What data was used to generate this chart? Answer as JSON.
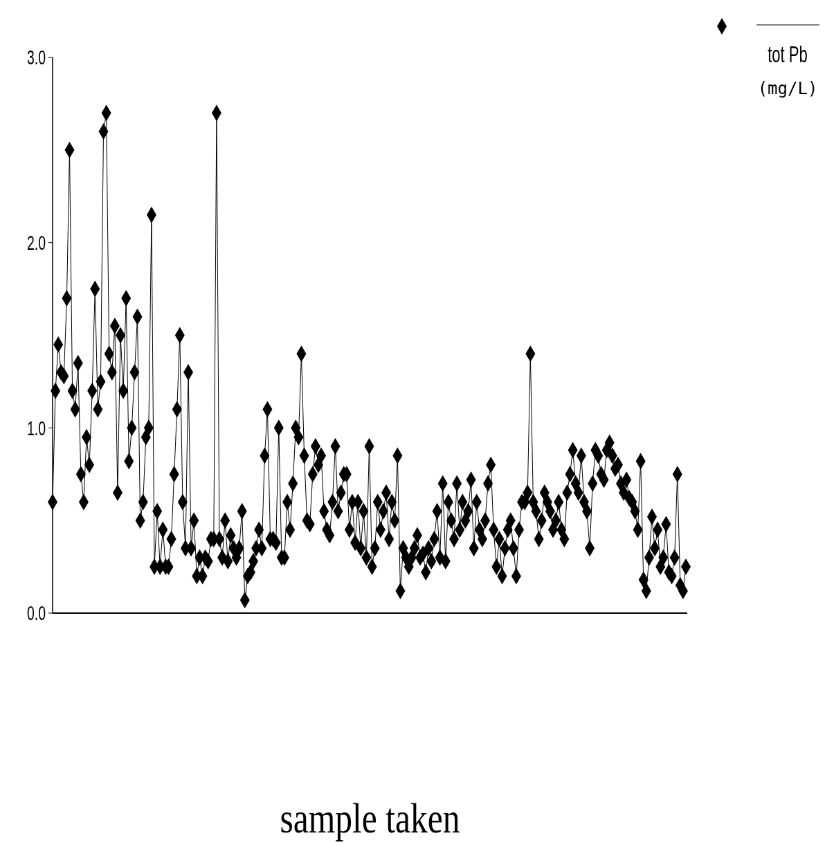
{
  "chart_data": {
    "type": "line",
    "xlabel": "sample taken",
    "categories": [
      null,
      null,
      null,
      null,
      null,
      null,
      null,
      null,
      null,
      null,
      null,
      null,
      null,
      null,
      null,
      null,
      null,
      null,
      null,
      null,
      null,
      null,
      null,
      null,
      null,
      null,
      null,
      null,
      null,
      null,
      null,
      null,
      null,
      null,
      null,
      null,
      null,
      null,
      null,
      null,
      null,
      null,
      null,
      null,
      null,
      null,
      null,
      null,
      null,
      null,
      null,
      null,
      null,
      null,
      null,
      null,
      null,
      null,
      null,
      null,
      null,
      null,
      null,
      null,
      null,
      null,
      null,
      null,
      null,
      null,
      null,
      null,
      null,
      null,
      null,
      null,
      null,
      null,
      null,
      null,
      null,
      null,
      null,
      null,
      null,
      null,
      null,
      null,
      null,
      null,
      null,
      null,
      null,
      null,
      null,
      null,
      null,
      null,
      null,
      null,
      null,
      null,
      null,
      null,
      null,
      null,
      null,
      null,
      null,
      null,
      null,
      null,
      null,
      null,
      null,
      null,
      null,
      null,
      null,
      null,
      null,
      null,
      null,
      null,
      null,
      null,
      null,
      null,
      null,
      null,
      null,
      null,
      null,
      null,
      null,
      null,
      null,
      null,
      null,
      null,
      null,
      null,
      null,
      null,
      null,
      null,
      null,
      null,
      null,
      null,
      null,
      null,
      null,
      null,
      null,
      null,
      null,
      null,
      null,
      null,
      null,
      null,
      null,
      null,
      null,
      null,
      null,
      null,
      null,
      null,
      null,
      null,
      null,
      null,
      null,
      null,
      null,
      null,
      null,
      null,
      null,
      null,
      null,
      null,
      null,
      null,
      null,
      null,
      null,
      null,
      null,
      null,
      null,
      null,
      null,
      null,
      null,
      null,
      null,
      null,
      null,
      null,
      null,
      null,
      null,
      null,
      null,
      null,
      null,
      null,
      null,
      null,
      null,
      null,
      null,
      null,
      null,
      null,
      null,
      null,
      null,
      null,
      null,
      null,
      null
    ],
    "series": [
      {
        "name": "tot Pb (mg/L)",
        "color": "#000000",
        "values": [
          0.6,
          1.2,
          1.45,
          1.3,
          1.28,
          1.7,
          2.5,
          1.2,
          1.1,
          1.35,
          0.75,
          0.6,
          0.95,
          0.8,
          1.2,
          1.75,
          1.1,
          1.25,
          2.6,
          2.7,
          1.4,
          1.3,
          1.55,
          0.65,
          1.5,
          1.2,
          1.7,
          0.82,
          1.0,
          1.3,
          1.6,
          0.5,
          0.6,
          0.95,
          1.0,
          2.15,
          0.25,
          0.55,
          0.25,
          0.45,
          0.25,
          0.25,
          0.4,
          0.75,
          1.1,
          1.5,
          0.6,
          0.35,
          1.3,
          0.35,
          0.5,
          0.2,
          0.3,
          0.2,
          0.3,
          0.28,
          0.4,
          0.4,
          2.7,
          0.4,
          0.3,
          0.5,
          0.28,
          0.42,
          0.35,
          0.3,
          0.35,
          0.55,
          0.07,
          0.2,
          0.22,
          0.28,
          0.35,
          0.45,
          0.35,
          0.85,
          1.1,
          0.4,
          0.4,
          0.38,
          1.0,
          0.3,
          0.3,
          0.6,
          0.45,
          0.7,
          1.0,
          0.95,
          1.4,
          0.85,
          0.5,
          0.48,
          0.75,
          0.9,
          0.8,
          0.85,
          0.55,
          0.45,
          0.42,
          0.6,
          0.9,
          0.55,
          0.65,
          0.75,
          0.75,
          0.45,
          0.6,
          0.38,
          0.6,
          0.35,
          0.55,
          0.3,
          0.9,
          0.25,
          0.35,
          0.6,
          0.45,
          0.55,
          0.65,
          0.4,
          0.6,
          0.5,
          0.85,
          0.12,
          0.35,
          0.3,
          0.25,
          0.3,
          0.35,
          0.42,
          0.3,
          0.32,
          0.22,
          0.35,
          0.28,
          0.4,
          0.55,
          0.3,
          0.7,
          0.28,
          0.6,
          0.5,
          0.4,
          0.7,
          0.45,
          0.6,
          0.5,
          0.55,
          0.72,
          0.35,
          0.6,
          0.45,
          0.4,
          0.5,
          0.7,
          0.8,
          0.45,
          0.25,
          0.4,
          0.2,
          0.35,
          0.45,
          0.5,
          0.35,
          0.2,
          0.45,
          0.6,
          0.6,
          0.65,
          1.4,
          0.6,
          0.55,
          0.4,
          0.5,
          0.65,
          0.6,
          0.55,
          0.45,
          0.5,
          0.6,
          0.45,
          0.4,
          0.65,
          0.75,
          0.88,
          0.7,
          0.65,
          0.85,
          0.6,
          0.55,
          0.35,
          0.7,
          0.88,
          0.85,
          0.75,
          0.72,
          0.88,
          0.92,
          0.85,
          0.78,
          0.8,
          0.7,
          0.65,
          0.72,
          0.62,
          0.6,
          0.55,
          0.45,
          0.82,
          0.18,
          0.12,
          0.3,
          0.52,
          0.35,
          0.45,
          0.25,
          0.3,
          0.48,
          0.22,
          0.2,
          0.3,
          0.75,
          0.15,
          0.12,
          0.25
        ]
      }
    ],
    "ylim": [
      0,
      3
    ],
    "yticks": [
      {
        "value": 0,
        "label": "0.0"
      },
      {
        "value": 1,
        "label": "1.0"
      },
      {
        "value": 2,
        "label": "2.0"
      },
      {
        "value": 3,
        "label": "3.0"
      }
    ],
    "marker": "diamond",
    "line_style": "solid",
    "legend": "top right",
    "grid": false,
    "tick_labels": "y"
  }
}
